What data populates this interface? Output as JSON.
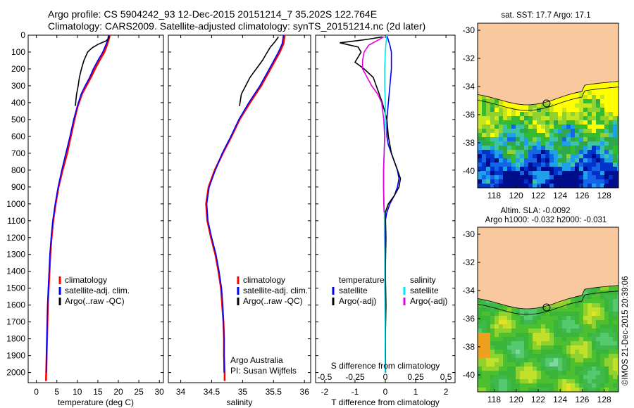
{
  "header": {
    "line1": "Argo profile: CS 5904242_93 12-Dec-2015 20151214_7 35.202S 122.764E",
    "line2": "Climatology: CARS2009. Satellite-adjusted climatology: synTS_20151214.nc (2d later)"
  },
  "colors": {
    "climatology": "#ff0000",
    "satellite": "#0000ff",
    "argo": "#000000",
    "sal_satellite": "#00e5ee",
    "sal_argo": "#e000e0",
    "land": "#f9c89e"
  },
  "chart_data": [
    {
      "type": "line",
      "name": "temperature",
      "xlabel": "temperature (deg C)",
      "xlim": [
        -2,
        31
      ],
      "ylim": [
        2060,
        0
      ],
      "xticks": [
        0,
        5,
        10,
        15,
        20,
        25,
        30
      ],
      "yticks": [
        0,
        100,
        200,
        300,
        400,
        500,
        600,
        700,
        800,
        900,
        1000,
        1100,
        1200,
        1300,
        1400,
        1500,
        1600,
        1700,
        1800,
        1900,
        2000
      ],
      "legend": [
        "climatology",
        "satellite-adj. clim.",
        "Argo(..raw -QC)"
      ],
      "series": [
        {
          "name": "climatology",
          "points": [
            [
              17.9,
              0
            ],
            [
              17.6,
              30
            ],
            [
              17.2,
              60
            ],
            [
              16.6,
              100
            ],
            [
              15.4,
              150
            ],
            [
              14.3,
              200
            ],
            [
              13.3,
              250
            ],
            [
              12.2,
              300
            ],
            [
              11.1,
              350
            ],
            [
              10.1,
              420
            ],
            [
              9.3,
              500
            ],
            [
              8.4,
              600
            ],
            [
              7.5,
              700
            ],
            [
              6.4,
              800
            ],
            [
              5.4,
              900
            ],
            [
              4.7,
              1000
            ],
            [
              4.1,
              1100
            ],
            [
              3.7,
              1200
            ],
            [
              3.4,
              1300
            ],
            [
              3.2,
              1400
            ],
            [
              3.0,
              1500
            ],
            [
              2.8,
              1600
            ],
            [
              2.7,
              1700
            ],
            [
              2.6,
              1800
            ],
            [
              2.5,
              1900
            ],
            [
              2.4,
              2000
            ],
            [
              2.35,
              2050
            ]
          ]
        },
        {
          "name": "satellite-adj. clim.",
          "points": [
            [
              17.6,
              0
            ],
            [
              17.4,
              30
            ],
            [
              16.9,
              60
            ],
            [
              16.2,
              100
            ],
            [
              15.0,
              150
            ],
            [
              13.9,
              200
            ],
            [
              13.0,
              250
            ],
            [
              11.9,
              300
            ],
            [
              10.9,
              350
            ],
            [
              10.0,
              420
            ],
            [
              9.1,
              500
            ],
            [
              8.2,
              600
            ],
            [
              7.2,
              700
            ],
            [
              6.2,
              800
            ],
            [
              5.3,
              900
            ],
            [
              4.6,
              1000
            ],
            [
              4.0,
              1100
            ],
            [
              3.6,
              1200
            ],
            [
              3.3,
              1300
            ],
            [
              3.1,
              1400
            ],
            [
              2.9,
              1500
            ],
            [
              2.75,
              1600
            ],
            [
              2.65,
              1700
            ],
            [
              2.55,
              1800
            ],
            [
              2.45,
              1900
            ],
            [
              2.4,
              2000
            ]
          ]
        },
        {
          "name": "Argo(..raw -QC)",
          "points": [
            [
              17.8,
              10
            ],
            [
              17.4,
              25
            ],
            [
              16.9,
              35
            ],
            [
              15.0,
              55
            ],
            [
              13.6,
              75
            ],
            [
              12.5,
              100
            ],
            [
              11.6,
              150
            ],
            [
              11.0,
              200
            ],
            [
              10.5,
              250
            ],
            [
              10.2,
              300
            ],
            [
              9.8,
              350
            ],
            [
              9.5,
              420
            ]
          ]
        }
      ]
    },
    {
      "type": "line",
      "name": "salinity",
      "xlabel": "salinity",
      "xlim": [
        33.8,
        36.1
      ],
      "ylim": [
        2060,
        0
      ],
      "xticks": [
        34,
        34.5,
        35,
        35.5,
        36
      ],
      "legend": [
        "climatology",
        "satellite-adj. clim.",
        "Argo(..raw -QC)"
      ],
      "series": [
        {
          "name": "climatology",
          "points": [
            [
              35.68,
              0
            ],
            [
              35.66,
              50
            ],
            [
              35.6,
              100
            ],
            [
              35.45,
              200
            ],
            [
              35.3,
              300
            ],
            [
              35.12,
              400
            ],
            [
              34.95,
              500
            ],
            [
              34.82,
              600
            ],
            [
              34.68,
              700
            ],
            [
              34.55,
              800
            ],
            [
              34.45,
              900
            ],
            [
              34.41,
              1000
            ],
            [
              34.43,
              1100
            ],
            [
              34.49,
              1200
            ],
            [
              34.56,
              1300
            ],
            [
              34.61,
              1400
            ],
            [
              34.65,
              1500
            ],
            [
              34.67,
              1600
            ],
            [
              34.69,
              1700
            ],
            [
              34.7,
              1800
            ],
            [
              34.7,
              1900
            ],
            [
              34.71,
              2000
            ],
            [
              34.71,
              2050
            ]
          ]
        },
        {
          "name": "satellite-adj. clim.",
          "points": [
            [
              35.66,
              0
            ],
            [
              35.64,
              50
            ],
            [
              35.58,
              100
            ],
            [
              35.43,
              200
            ],
            [
              35.28,
              300
            ],
            [
              35.1,
              400
            ],
            [
              34.94,
              500
            ],
            [
              34.81,
              600
            ],
            [
              34.67,
              700
            ],
            [
              34.56,
              800
            ],
            [
              34.46,
              900
            ],
            [
              34.42,
              1000
            ],
            [
              34.44,
              1100
            ],
            [
              34.5,
              1200
            ],
            [
              34.57,
              1300
            ],
            [
              34.62,
              1400
            ],
            [
              34.66,
              1500
            ],
            [
              34.68,
              1600
            ],
            [
              34.69,
              1700
            ],
            [
              34.7,
              1800
            ],
            [
              34.7,
              1900
            ],
            [
              34.7,
              2000
            ]
          ]
        },
        {
          "name": "Argo(..raw -QC)",
          "points": [
            [
              35.58,
              10
            ],
            [
              35.52,
              40
            ],
            [
              35.45,
              70
            ],
            [
              35.4,
              100
            ],
            [
              35.32,
              150
            ],
            [
              35.22,
              200
            ],
            [
              35.12,
              250
            ],
            [
              35.05,
              300
            ],
            [
              34.98,
              350
            ],
            [
              34.95,
              420
            ]
          ]
        }
      ],
      "annotation": [
        "Argo Australia",
        "PI: Susan Wijffels"
      ]
    },
    {
      "type": "line",
      "name": "difference",
      "xlabel": "T difference from climatology",
      "xlabel_top": "S difference from climatology",
      "xlim": [
        -2.3,
        2.3
      ],
      "ylim": [
        2060,
        0
      ],
      "xticks": [
        -2,
        -1,
        0,
        1,
        2
      ],
      "xticks_top": [
        -0.5,
        -0.25,
        0,
        0.25,
        0.5
      ],
      "legend_temperature": {
        "title": "temperature",
        "items": [
          "satellite",
          "Argo(-adj)"
        ]
      },
      "legend_salinity": {
        "title": "salinity",
        "items": [
          "satellite",
          "Argo(-adj)"
        ]
      },
      "series": [
        {
          "name": "temperature satellite",
          "points": [
            [
              0.05,
              0
            ],
            [
              0.1,
              30
            ],
            [
              0.15,
              60
            ],
            [
              0.2,
              100
            ],
            [
              0.2,
              200
            ],
            [
              0.15,
              300
            ],
            [
              0.1,
              400
            ],
            [
              0.05,
              500
            ],
            [
              0.05,
              600
            ],
            [
              0.1,
              650
            ],
            [
              0.3,
              750
            ],
            [
              0.4,
              800
            ],
            [
              0.45,
              850
            ],
            [
              0.4,
              900
            ],
            [
              0.3,
              950
            ],
            [
              0.15,
              1000
            ],
            [
              0.05,
              1050
            ],
            [
              0,
              1100
            ],
            [
              0,
              1300
            ],
            [
              0,
              2000
            ]
          ]
        },
        {
          "name": "temperature Argo(-adj)",
          "points": [
            [
              -0.1,
              10
            ],
            [
              -0.6,
              25
            ],
            [
              -1.5,
              45
            ],
            [
              -0.9,
              70
            ],
            [
              -0.8,
              100
            ],
            [
              -0.9,
              130
            ],
            [
              -1.0,
              160
            ],
            [
              -0.7,
              200
            ],
            [
              -0.4,
              250
            ],
            [
              -0.3,
              300
            ],
            [
              -0.2,
              350
            ],
            [
              -0.1,
              400
            ],
            [
              0.05,
              500
            ],
            [
              0.1,
              600
            ],
            [
              0.2,
              700
            ],
            [
              0.4,
              800
            ],
            [
              0.5,
              850
            ],
            [
              0.45,
              900
            ],
            [
              0.3,
              950
            ],
            [
              0.1,
              1000
            ],
            [
              0,
              1050
            ],
            [
              0.02,
              1200
            ],
            [
              0,
              1400
            ],
            [
              0.02,
              1600
            ],
            [
              0,
              1800
            ],
            [
              0.01,
              2000
            ]
          ]
        },
        {
          "name": "salinity satellite",
          "points": [
            [
              0.05,
              0
            ],
            [
              0.02,
              50
            ],
            [
              0,
              100
            ],
            [
              -0.02,
              200
            ],
            [
              -0.02,
              300
            ],
            [
              0,
              400
            ],
            [
              0,
              500
            ],
            [
              -0.02,
              600
            ],
            [
              -0.04,
              700
            ],
            [
              -0.05,
              800
            ],
            [
              -0.05,
              900
            ],
            [
              -0.04,
              1000
            ],
            [
              -0.03,
              1100
            ],
            [
              -0.03,
              1200
            ],
            [
              -0.02,
              1300
            ],
            [
              -0.02,
              1500
            ],
            [
              -0.01,
              1700
            ],
            [
              -0.01,
              1900
            ],
            [
              0,
              2000
            ]
          ]
        },
        {
          "name": "salinity Argo(-adj)",
          "points": [
            [
              -0.05,
              10
            ],
            [
              -0.3,
              35
            ],
            [
              -0.55,
              60
            ],
            [
              -0.7,
              100
            ],
            [
              -0.75,
              150
            ],
            [
              -0.75,
              200
            ],
            [
              -0.6,
              250
            ],
            [
              -0.45,
              300
            ],
            [
              -0.25,
              350
            ],
            [
              -0.12,
              400
            ],
            [
              -0.05,
              500
            ],
            [
              -0.02,
              600
            ],
            [
              -0.04,
              700
            ],
            [
              -0.06,
              800
            ],
            [
              -0.06,
              900
            ],
            [
              -0.05,
              1000
            ],
            [
              -0.04,
              1050
            ]
          ]
        }
      ]
    }
  ],
  "map_sst": {
    "title": "sat. SST: 17.7 Argo: 17.1",
    "xticks": [
      118,
      120,
      122,
      124,
      126,
      128
    ],
    "yticks": [
      -30,
      -32,
      -34,
      -36,
      -38,
      -40
    ],
    "xlim": [
      116.5,
      129.3
    ],
    "ylim": [
      -41.2,
      -29.5
    ],
    "argo_position": [
      122.764,
      -35.202
    ]
  },
  "map_sla": {
    "title_line1": "Altim. SLA: -0.0092",
    "title_line2": "Argo h1000: -0.032 h2000: -0.031",
    "xticks": [
      118,
      120,
      122,
      124,
      126,
      128
    ],
    "yticks": [
      -30,
      -32,
      -34,
      -36,
      -38,
      -40
    ],
    "xlim": [
      116.5,
      129.3
    ],
    "ylim": [
      -41.2,
      -29.5
    ],
    "argo_position": [
      122.764,
      -35.202
    ]
  },
  "credit": "©IMOS 21-Dec-2015 20:39:06"
}
